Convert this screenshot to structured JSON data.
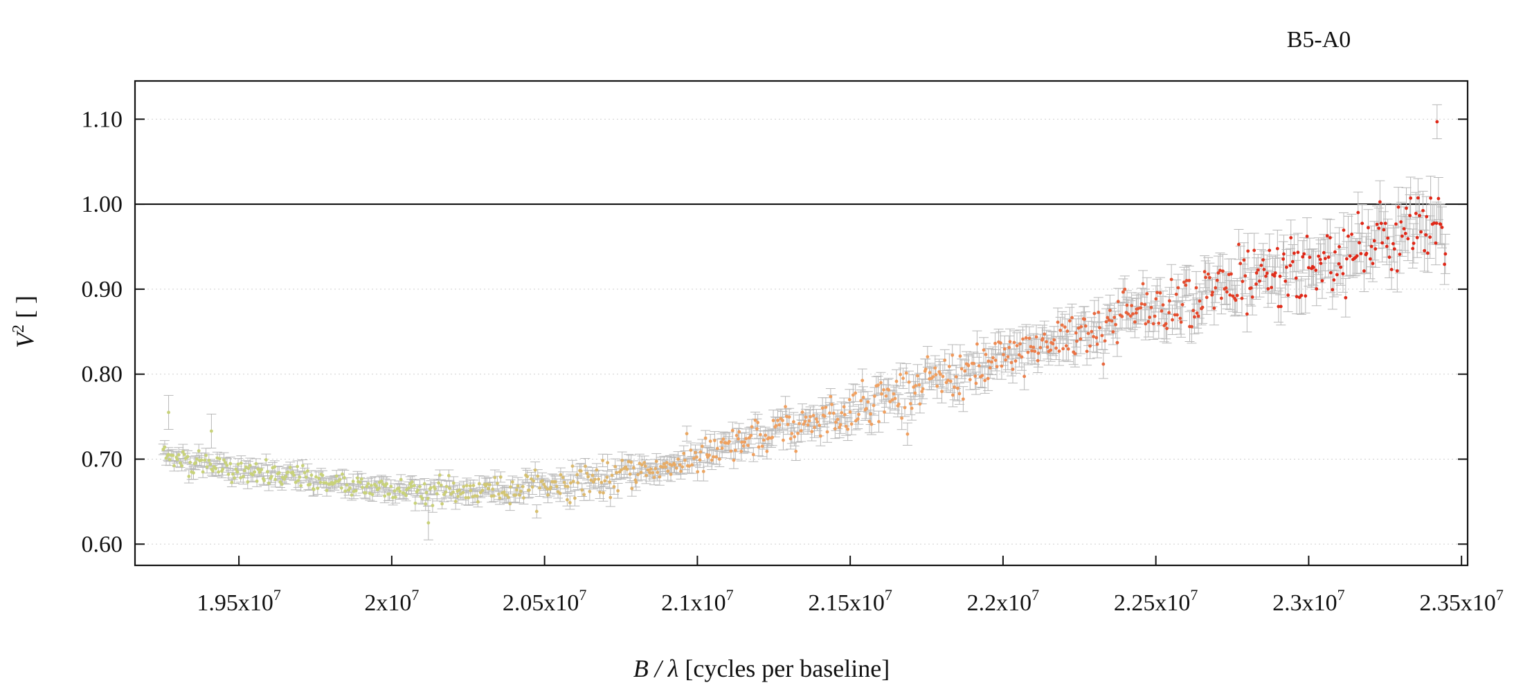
{
  "chart_data": {
    "type": "scatter",
    "title": "B5-A0",
    "xlabel": {
      "italic": "B / λ",
      "rest": " [cycles per baseline]"
    },
    "ylabel": {
      "italic": "V",
      "sup": "2",
      "rest": " [ ]"
    },
    "xlim": [
      19160000,
      23520000
    ],
    "ylim": [
      0.575,
      1.145
    ],
    "x_ticks": [
      {
        "value": 19500000,
        "base": "1.95x10",
        "exp": "7"
      },
      {
        "value": 20000000,
        "base": "2x10",
        "exp": "7"
      },
      {
        "value": 20500000,
        "base": "2.05x10",
        "exp": "7"
      },
      {
        "value": 21000000,
        "base": "2.1x10",
        "exp": "7"
      },
      {
        "value": 21500000,
        "base": "2.15x10",
        "exp": "7"
      },
      {
        "value": 22000000,
        "base": "2.2x10",
        "exp": "7"
      },
      {
        "value": 22500000,
        "base": "2.25x10",
        "exp": "7"
      },
      {
        "value": 23000000,
        "base": "2.3x10",
        "exp": "7"
      },
      {
        "value": 23500000,
        "base": "2.35x10",
        "exp": "7"
      }
    ],
    "y_ticks": [
      {
        "value": 0.6,
        "label": "0.60"
      },
      {
        "value": 0.7,
        "label": "0.70"
      },
      {
        "value": 0.8,
        "label": "0.80"
      },
      {
        "value": 0.9,
        "label": "0.90"
      },
      {
        "value": 1.0,
        "label": "1.00"
      },
      {
        "value": 1.1,
        "label": "1.10"
      }
    ],
    "reference_line": 1.0,
    "grid": "horizontal dotted",
    "error_bar_color": "#b8b8b8",
    "point_colors": {
      "low_freq": "#c8d27a",
      "mid_freq": "#f0a060",
      "high_freq": "#e02818"
    },
    "trend": [
      {
        "x": 19250000,
        "y": 0.705
      },
      {
        "x": 19500000,
        "y": 0.685
      },
      {
        "x": 19750000,
        "y": 0.675
      },
      {
        "x": 20000000,
        "y": 0.665
      },
      {
        "x": 20250000,
        "y": 0.662
      },
      {
        "x": 20500000,
        "y": 0.668
      },
      {
        "x": 20750000,
        "y": 0.68
      },
      {
        "x": 21000000,
        "y": 0.7
      },
      {
        "x": 21250000,
        "y": 0.73
      },
      {
        "x": 21500000,
        "y": 0.758
      },
      {
        "x": 21750000,
        "y": 0.79
      },
      {
        "x": 22000000,
        "y": 0.815
      },
      {
        "x": 22250000,
        "y": 0.85
      },
      {
        "x": 22500000,
        "y": 0.88
      },
      {
        "x": 22750000,
        "y": 0.905
      },
      {
        "x": 23000000,
        "y": 0.925
      },
      {
        "x": 23250000,
        "y": 0.955
      },
      {
        "x": 23450000,
        "y": 0.97
      }
    ],
    "n_points": 900,
    "notable_points": [
      {
        "x": 23420000,
        "y": 1.097
      },
      {
        "x": 19270000,
        "y": 0.755
      },
      {
        "x": 20120000,
        "y": 0.625
      },
      {
        "x": 19410000,
        "y": 0.733
      }
    ]
  }
}
